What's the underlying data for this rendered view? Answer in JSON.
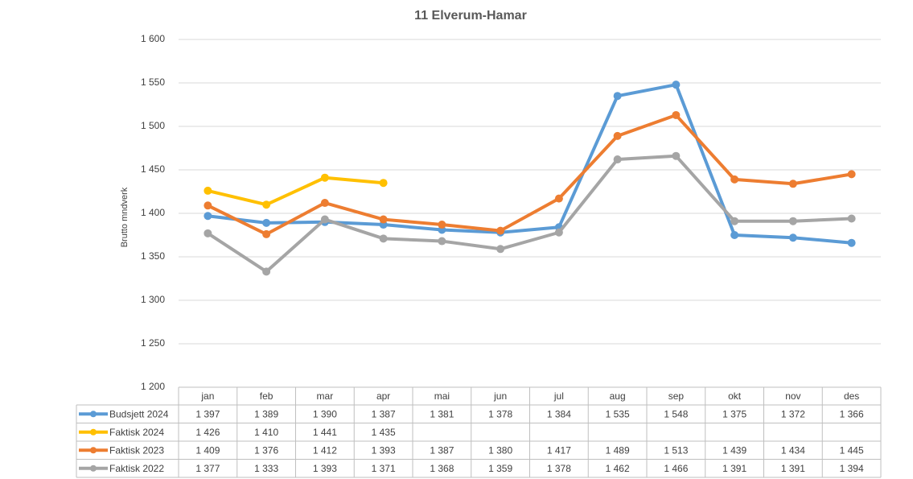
{
  "chart_data": {
    "type": "line",
    "title": "11 Elverum-Hamar",
    "y_label": "Brutto mndverk",
    "categories": [
      "jan",
      "feb",
      "mar",
      "apr",
      "mai",
      "jun",
      "jul",
      "aug",
      "sep",
      "okt",
      "nov",
      "des"
    ],
    "ylim": [
      1200,
      1600
    ],
    "yticks": [
      {
        "value": 1200,
        "label": "1 200"
      },
      {
        "value": 1250,
        "label": "1 250"
      },
      {
        "value": 1300,
        "label": "1 300"
      },
      {
        "value": 1350,
        "label": "1 350"
      },
      {
        "value": 1400,
        "label": "1 400"
      },
      {
        "value": 1450,
        "label": "1 450"
      },
      {
        "value": 1500,
        "label": "1 500"
      },
      {
        "value": 1550,
        "label": "1 550"
      },
      {
        "value": 1600,
        "label": "1 600"
      }
    ],
    "grid": true,
    "series": [
      {
        "name": "Budsjett 2024",
        "color": "#5b9bd5",
        "values": [
          1397,
          1389,
          1390,
          1387,
          1381,
          1378,
          1384,
          1535,
          1548,
          1375,
          1372,
          1366
        ],
        "value_labels": [
          "1 397",
          "1 389",
          "1 390",
          "1 387",
          "1 381",
          "1 378",
          "1 384",
          "1 535",
          "1 548",
          "1 375",
          "1 372",
          "1 366"
        ]
      },
      {
        "name": "Faktisk 2024",
        "color": "#ffc000",
        "values": [
          1426,
          1410,
          1441,
          1435,
          null,
          null,
          null,
          null,
          null,
          null,
          null,
          null
        ],
        "value_labels": [
          "1 426",
          "1 410",
          "1 441",
          "1 435",
          null,
          null,
          null,
          null,
          null,
          null,
          null,
          null
        ]
      },
      {
        "name": "Faktisk 2023",
        "color": "#ed7d31",
        "values": [
          1409,
          1376,
          1412,
          1393,
          1387,
          1380,
          1417,
          1489,
          1513,
          1439,
          1434,
          1445
        ],
        "value_labels": [
          "1 409",
          "1 376",
          "1 412",
          "1 393",
          "1 387",
          "1 380",
          "1 417",
          "1 489",
          "1 513",
          "1 439",
          "1 434",
          "1 445"
        ]
      },
      {
        "name": "Faktisk 2022",
        "color": "#a5a5a5",
        "values": [
          1377,
          1333,
          1393,
          1371,
          1368,
          1359,
          1378,
          1462,
          1466,
          1391,
          1391,
          1394
        ],
        "value_labels": [
          "1 377",
          "1 333",
          "1 393",
          "1 371",
          "1 368",
          "1 359",
          "1 378",
          "1 462",
          "1 466",
          "1 391",
          "1 391",
          "1 394"
        ]
      }
    ]
  }
}
